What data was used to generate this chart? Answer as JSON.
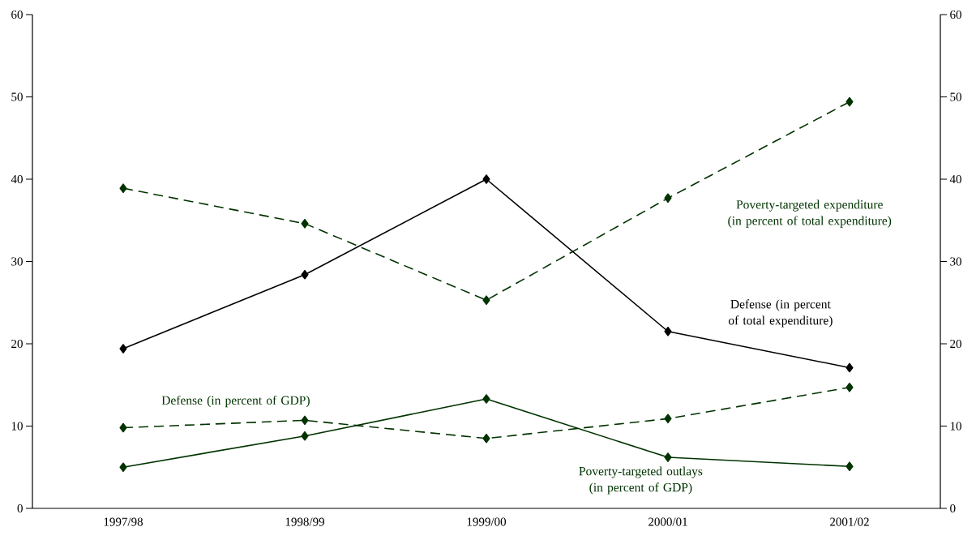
{
  "chart_data": {
    "type": "line",
    "categories": [
      "1997/98",
      "1998/99",
      "1999/00",
      "2000/01",
      "2001/02"
    ],
    "series": [
      {
        "name": "Poverty-targeted expenditure (in percent of total expenditure)",
        "color": "#003300",
        "line_style": "dashed",
        "values": [
          38.9,
          34.6,
          25.3,
          37.7,
          49.4
        ]
      },
      {
        "name": "Defense (in percent of total expenditure)",
        "color": "#000000",
        "line_style": "solid",
        "values": [
          19.4,
          28.4,
          40.0,
          21.5,
          17.1
        ]
      },
      {
        "name": "Defense (in percent of GDP)",
        "color": "#003300",
        "line_style": "dashed",
        "values": [
          9.8,
          10.7,
          8.5,
          10.9,
          14.7
        ]
      },
      {
        "name": "Poverty-targeted outlays (in percent of GDP)",
        "color": "#003300",
        "line_style": "solid",
        "values": [
          5.0,
          8.8,
          13.3,
          6.2,
          5.1
        ]
      }
    ],
    "ylim": [
      0,
      60
    ],
    "yticks": [
      0,
      10,
      20,
      30,
      40,
      50,
      60
    ],
    "y2lim": [
      0,
      60
    ],
    "y2ticks": [
      0,
      10,
      20,
      30,
      40,
      50,
      60
    ],
    "marker": "diamond",
    "grid": false,
    "legend": false
  }
}
